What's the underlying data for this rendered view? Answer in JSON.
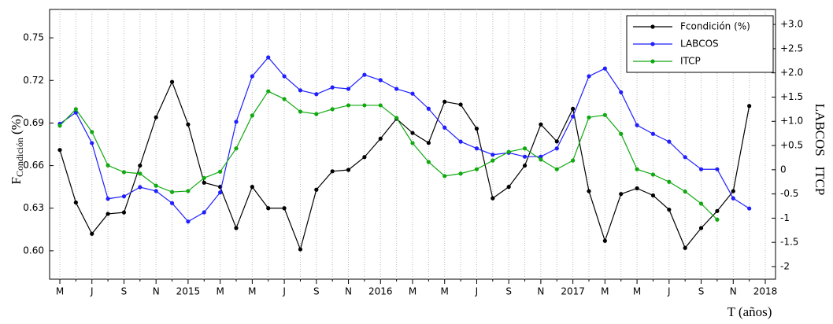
{
  "chart_data": {
    "type": "line",
    "y_label": "F",
    "y_label_sub": "Condición",
    "y_label_unit": "(%)",
    "y2_label": "LABCOS   ITCP",
    "x_label": "T (años)",
    "categories": [
      "M",
      null,
      "J",
      null,
      "S",
      null,
      "N",
      null,
      "2015",
      null,
      "M",
      null,
      "M",
      null,
      "J",
      null,
      "S",
      null,
      "N",
      null,
      "2016",
      null,
      "M",
      null,
      "M",
      null,
      "J",
      null,
      "S",
      null,
      "N",
      null,
      "2017",
      null,
      "M",
      null,
      "M",
      null,
      "J",
      null,
      "S",
      null,
      "N",
      null,
      "2018"
    ],
    "ylim": [
      0.58,
      0.77
    ],
    "yticks": [
      {
        "value": 0.6,
        "label": "0.60"
      },
      0.63,
      0.66,
      0.69,
      0.72,
      0.75
    ],
    "y2lim": [
      -2.26,
      3.31
    ],
    "y2ticks": [
      -2,
      -1.5,
      -1,
      -0.5,
      0,
      {
        "value": 0.5,
        "label": "+0.5"
      },
      {
        "value": 1,
        "label": "+1.0"
      },
      {
        "value": 1.5,
        "label": "+1.5"
      },
      {
        "value": 2,
        "label": "+2.0"
      },
      {
        "value": 2.5,
        "label": "+2.5"
      },
      {
        "value": 3,
        "label": "+3.0"
      }
    ],
    "xgrid": true,
    "legend": "top-right",
    "series": [
      {
        "name": "Fcondición (%)",
        "color": "#000000",
        "axis": "y",
        "values": [
          0.671,
          0.634,
          0.612,
          0.626,
          0.627,
          0.66,
          0.694,
          0.719,
          0.689,
          0.648,
          0.645,
          0.616,
          0.645,
          0.63,
          0.63,
          0.601,
          0.643,
          0.656,
          0.657,
          0.666,
          0.679,
          0.693,
          0.683,
          0.676,
          0.705,
          0.703,
          0.686,
          0.637,
          0.645,
          0.66,
          0.689,
          0.677,
          0.7,
          0.642,
          0.607,
          0.64,
          0.644,
          0.639,
          0.629,
          0.602,
          0.616,
          0.628,
          0.642,
          0.702,
          null
        ]
      },
      {
        "name": "LABCOS",
        "color": "#1f1fff",
        "axis": "y2",
        "values": [
          0.95,
          1.18,
          0.55,
          -0.6,
          -0.55,
          -0.36,
          -0.44,
          -0.69,
          -1.07,
          -0.88,
          -0.47,
          0.99,
          1.93,
          2.32,
          1.93,
          1.64,
          1.56,
          1.7,
          1.67,
          1.96,
          1.85,
          1.67,
          1.57,
          1.26,
          0.87,
          0.58,
          0.44,
          0.31,
          0.35,
          0.27,
          0.27,
          0.44,
          1.1,
          1.93,
          2.09,
          1.6,
          0.92,
          0.74,
          0.58,
          0.26,
          0.01,
          0.01,
          -0.59,
          -0.8,
          null
        ]
      },
      {
        "name": "ITCP",
        "color": "#11a811",
        "axis": "y2",
        "values": [
          0.91,
          1.25,
          0.78,
          0.09,
          -0.05,
          -0.08,
          -0.33,
          -0.46,
          -0.44,
          -0.17,
          -0.04,
          0.44,
          1.12,
          1.62,
          1.46,
          1.2,
          1.15,
          1.25,
          1.33,
          1.33,
          1.33,
          1.07,
          0.55,
          0.16,
          -0.13,
          -0.08,
          0.01,
          0.19,
          0.37,
          0.44,
          0.21,
          0.01,
          0.19,
          1.08,
          1.13,
          0.74,
          0.01,
          -0.1,
          -0.25,
          -0.45,
          -0.7,
          -1.03,
          null,
          null,
          null
        ]
      }
    ]
  }
}
